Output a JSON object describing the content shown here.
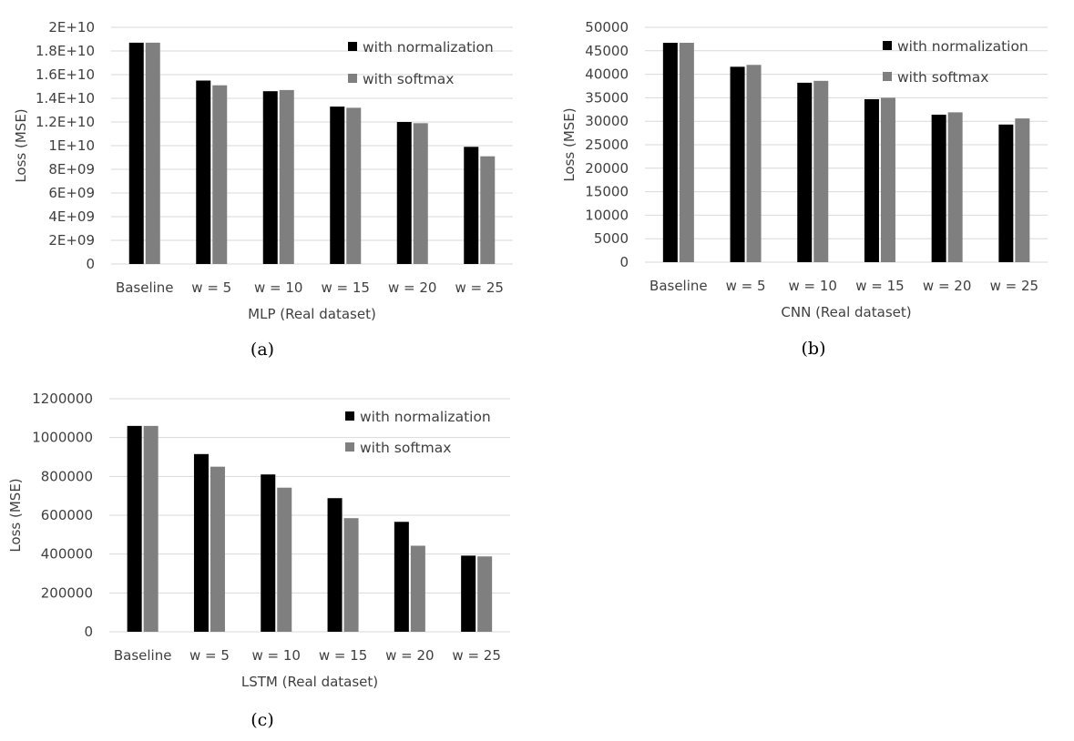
{
  "colors": {
    "with_normalization": "#000000",
    "with_softmax": "#7f7f7f"
  },
  "chart_data": [
    {
      "type": "bar",
      "panel": "(a)",
      "xlabel": "MLP (Real dataset)",
      "ylabel": "Loss (MSE)",
      "categories": [
        "Baseline",
        "w = 5",
        "w = 10",
        "w = 15",
        "w = 20",
        "w = 25"
      ],
      "ylim": [
        0,
        20000000000
      ],
      "yticks": [
        0,
        2000000000,
        4000000000,
        6000000000,
        8000000000,
        10000000000,
        12000000000,
        14000000000,
        16000000000,
        18000000000,
        20000000000
      ],
      "ytick_labels": [
        "0",
        "2E+09",
        "4E+09",
        "6E+09",
        "8E+09",
        "1E+10",
        "1.2E+10",
        "1.4E+10",
        "1.6E+10",
        "1.8E+10",
        "2E+10"
      ],
      "grid": true,
      "legend_position": "top-right",
      "series": [
        {
          "name": "with normalization",
          "values": [
            18700000000,
            15500000000,
            14600000000,
            13300000000,
            12000000000,
            9900000000
          ]
        },
        {
          "name": "with softmax",
          "values": [
            18700000000,
            15100000000,
            14700000000,
            13200000000,
            11900000000,
            9100000000
          ]
        }
      ]
    },
    {
      "type": "bar",
      "panel": "(b)",
      "xlabel": "CNN (Real dataset)",
      "ylabel": "Loss (MSE)",
      "categories": [
        "Baseline",
        "w = 5",
        "w = 10",
        "w = 15",
        "w = 20",
        "w = 25"
      ],
      "ylim": [
        0,
        50000
      ],
      "yticks": [
        0,
        5000,
        10000,
        15000,
        20000,
        25000,
        30000,
        35000,
        40000,
        45000,
        50000
      ],
      "ytick_labels": [
        "0",
        "5000",
        "10000",
        "15000",
        "20000",
        "25000",
        "30000",
        "35000",
        "40000",
        "45000",
        "50000"
      ],
      "grid": true,
      "legend_position": "top-right",
      "series": [
        {
          "name": "with normalization",
          "values": [
            46700,
            41600,
            38200,
            34700,
            31400,
            29300
          ]
        },
        {
          "name": "with softmax",
          "values": [
            46700,
            42000,
            38600,
            35000,
            31900,
            30600
          ]
        }
      ]
    },
    {
      "type": "bar",
      "panel": "(c)",
      "xlabel": "LSTM (Real dataset)",
      "ylabel": "Loss (MSE)",
      "categories": [
        "Baseline",
        "w = 5",
        "w = 10",
        "w = 15",
        "w = 20",
        "w = 25"
      ],
      "ylim": [
        0,
        1200000
      ],
      "yticks": [
        0,
        200000,
        400000,
        600000,
        800000,
        1000000,
        1200000
      ],
      "ytick_labels": [
        "0",
        "200000",
        "400000",
        "600000",
        "800000",
        "1000000",
        "1200000"
      ],
      "grid": true,
      "legend_position": "top-right",
      "series": [
        {
          "name": "with normalization",
          "values": [
            1060000,
            915000,
            810000,
            688000,
            566000,
            392000
          ]
        },
        {
          "name": "with softmax",
          "values": [
            1060000,
            850000,
            742000,
            585000,
            443000,
            388000
          ]
        }
      ]
    }
  ]
}
